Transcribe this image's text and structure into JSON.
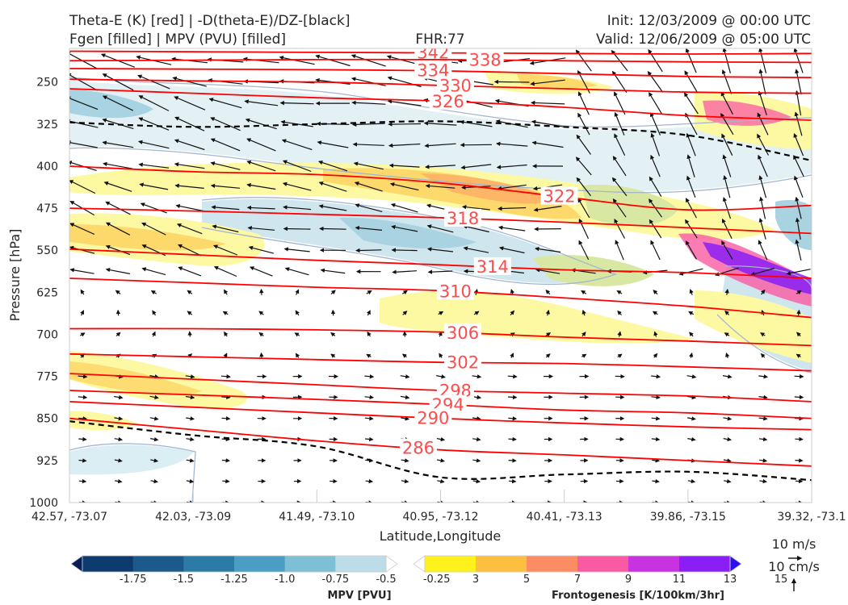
{
  "header": {
    "title_left_1": "Theta-E (K) [red] | -D(theta-E)/DZ-[black]",
    "title_left_2": "Fgen [filled] | MPV (PVU) [filled]",
    "title_center": "FHR:77",
    "title_right_1": "Init: 12/03/2009 @ 00:00 UTC",
    "title_right_2": "Valid: 12/06/2009 @ 05:00 UTC"
  },
  "chart_data": {
    "type": "cross-section",
    "xlabel": "Latitude,Longitude",
    "ylabel": "Pressure [hPa]",
    "x_ticks": [
      "42.57, -73.07",
      "42.03, -73.09",
      "41.49, -73.10",
      "40.95, -73.12",
      "40.41, -73.13",
      "39.86, -73.15",
      "39.32, -73.1"
    ],
    "y_ticks": [
      "250",
      "325",
      "400",
      "475",
      "550",
      "625",
      "700",
      "775",
      "850",
      "925",
      "1000"
    ],
    "y_values": [
      250,
      325,
      400,
      475,
      550,
      625,
      700,
      775,
      850,
      925,
      1000
    ],
    "ylim": [
      1000,
      190
    ],
    "theta_e_contours": [
      {
        "label": "342",
        "p": [
          195,
          196,
          197,
          198,
          199,
          200,
          199
        ]
      },
      {
        "label": "338",
        "p": [
          212,
          211,
          210,
          210,
          212,
          214,
          215
        ]
      },
      {
        "label": "334",
        "p": [
          226,
          227,
          228,
          230,
          235,
          240,
          242
        ]
      },
      {
        "label": "330",
        "p": [
          245,
          248,
          250,
          256,
          262,
          268,
          270
        ]
      },
      {
        "label": "326",
        "p": [
          262,
          270,
          278,
          284,
          295,
          310,
          318
        ]
      },
      {
        "label": "322",
        "p": [
          400,
          410,
          415,
          430,
          455,
          478,
          470
        ]
      },
      {
        "label": "318",
        "p": [
          475,
          480,
          486,
          492,
          500,
          510,
          520
        ]
      },
      {
        "label": "314",
        "p": [
          548,
          558,
          568,
          576,
          585,
          590,
          600
        ]
      },
      {
        "label": "310",
        "p": [
          600,
          608,
          616,
          622,
          635,
          650,
          670
        ]
      },
      {
        "label": "306",
        "p": [
          690,
          690,
          692,
          696,
          705,
          712,
          720
        ]
      },
      {
        "label": "302",
        "p": [
          735,
          740,
          745,
          750,
          752,
          758,
          765
        ]
      },
      {
        "label": "298",
        "p": [
          770,
          780,
          790,
          800,
          805,
          810,
          820
        ]
      },
      {
        "label": "294",
        "p": [
          800,
          808,
          816,
          825,
          835,
          840,
          850
        ]
      },
      {
        "label": "290",
        "p": [
          820,
          830,
          840,
          850,
          858,
          865,
          870
        ]
      },
      {
        "label": "286",
        "p": [
          850,
          870,
          890,
          906,
          915,
          925,
          935
        ]
      }
    ],
    "stability_contours": [
      {
        "name": "upper",
        "p": [
          322,
          330,
          325,
          320,
          330,
          345,
          390
        ]
      },
      {
        "name": "lower",
        "p": [
          855,
          880,
          900,
          955,
          950,
          945,
          960
        ]
      }
    ],
    "mpv_colorbar": {
      "label": "MPV [PVU]",
      "levels": [
        "-1.75",
        "-1.5",
        "-1.25",
        "-1.0",
        "-0.75",
        "-0.5",
        "-0.25"
      ],
      "colors": [
        "#081d58",
        "#0d3b6e",
        "#1c5a8c",
        "#2b7ba6",
        "#4a9ec4",
        "#7fbfd6",
        "#bcdde7",
        "#ffffff"
      ]
    },
    "fgen_colorbar": {
      "label": "Frontogenesis [K/100km/3hr]",
      "levels": [
        "3",
        "5",
        "7",
        "9",
        "11",
        "13",
        "15"
      ],
      "colors": [
        "#ffffff",
        "#fff21c",
        "#fdbf3f",
        "#fc8c63",
        "#fa5aa2",
        "#c832e0",
        "#8a1ef4",
        "#2b10ee"
      ]
    },
    "wind_vectors": {
      "rows": [
        1000,
        962,
        925,
        887,
        850,
        812,
        775,
        738,
        700,
        662,
        625,
        588,
        550,
        512,
        475,
        437,
        400,
        362,
        325,
        288,
        250,
        212
      ],
      "cols": 21
    },
    "quiver_key": {
      "horizontal": "10 m/s",
      "vertical": "10 cm/s"
    }
  },
  "colors": {
    "theta_e": "#ff0000",
    "stability": "#000000",
    "mpv_outline": "#a3b5d0"
  }
}
